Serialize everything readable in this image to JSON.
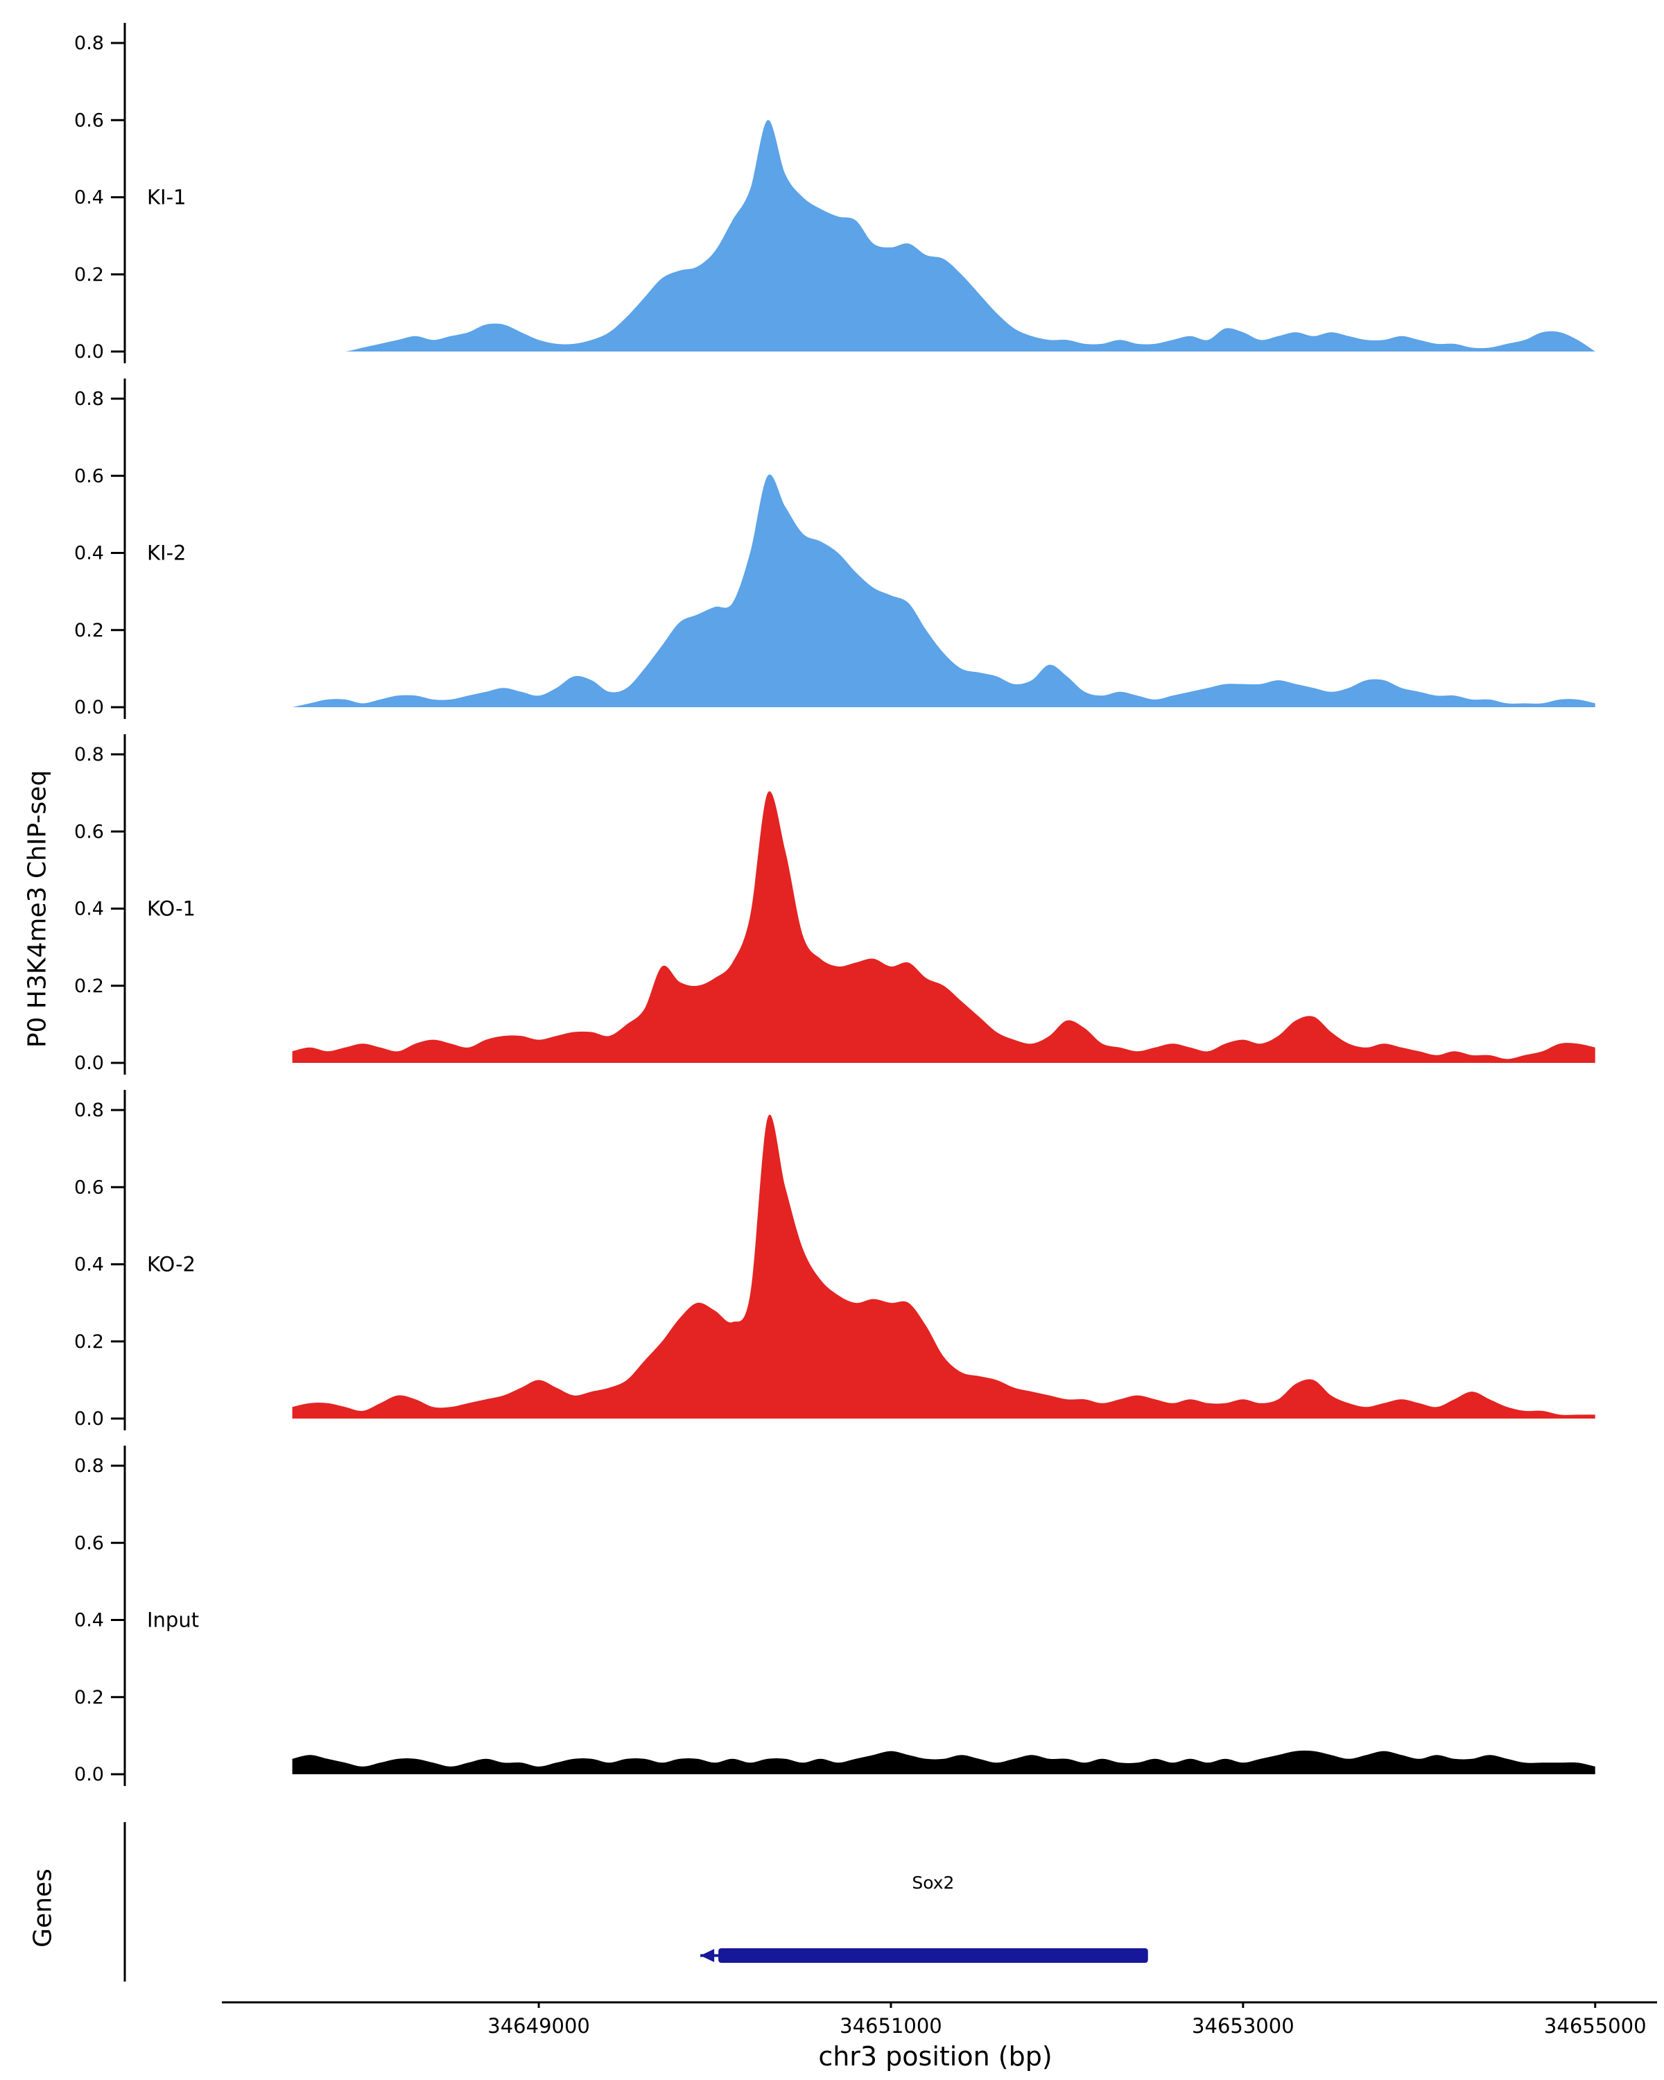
{
  "figure": {
    "y_axis_title": "P0 H3K4me3 ChIP-seq",
    "genes_panel_label": "Genes",
    "x_axis_label": "chr3 position (bp)"
  },
  "chart_data": {
    "type": "area",
    "title": "",
    "ylabel": "P0 H3K4me3 ChIP-seq",
    "xlabel": "chr3 position (bp)",
    "x_range": [
      34647200,
      34655320
    ],
    "y_range": [
      0,
      0.8
    ],
    "y_ticks": [
      "0.0",
      "0.2",
      "0.4",
      "0.6",
      "0.8"
    ],
    "x_ticks": [
      34649000,
      34651000,
      34653000,
      34655000
    ],
    "x_tick_labels": [
      "34649000",
      "34651000",
      "34653000",
      "34655000"
    ],
    "grid": "off",
    "legend": "none",
    "x_start": 34647600,
    "x_step": 100,
    "tracks": [
      {
        "name": "KI-1",
        "color": "#5CA3E8",
        "values": [
          0,
          0,
          0,
          0,
          0.01,
          0.02,
          0.03,
          0.04,
          0.03,
          0.04,
          0.05,
          0.07,
          0.07,
          0.05,
          0.03,
          0.02,
          0.02,
          0.03,
          0.05,
          0.09,
          0.14,
          0.19,
          0.21,
          0.22,
          0.26,
          0.34,
          0.42,
          0.6,
          0.46,
          0.4,
          0.37,
          0.35,
          0.34,
          0.28,
          0.27,
          0.28,
          0.25,
          0.24,
          0.2,
          0.15,
          0.1,
          0.06,
          0.04,
          0.03,
          0.03,
          0.02,
          0.02,
          0.03,
          0.02,
          0.02,
          0.03,
          0.04,
          0.03,
          0.06,
          0.05,
          0.03,
          0.04,
          0.05,
          0.04,
          0.05,
          0.04,
          0.03,
          0.03,
          0.04,
          0.03,
          0.02,
          0.02,
          0.01,
          0.01,
          0.02,
          0.03,
          0.05,
          0.05,
          0.03,
          0
        ]
      },
      {
        "name": "KI-2",
        "color": "#5CA3E8",
        "values": [
          0,
          0.01,
          0.02,
          0.02,
          0.01,
          0.02,
          0.03,
          0.03,
          0.02,
          0.02,
          0.03,
          0.04,
          0.05,
          0.04,
          0.03,
          0.05,
          0.08,
          0.07,
          0.04,
          0.05,
          0.1,
          0.16,
          0.22,
          0.24,
          0.26,
          0.27,
          0.4,
          0.6,
          0.52,
          0.45,
          0.43,
          0.4,
          0.35,
          0.31,
          0.29,
          0.27,
          0.2,
          0.14,
          0.1,
          0.09,
          0.08,
          0.06,
          0.07,
          0.11,
          0.08,
          0.04,
          0.03,
          0.04,
          0.03,
          0.02,
          0.03,
          0.04,
          0.05,
          0.06,
          0.06,
          0.06,
          0.07,
          0.06,
          0.05,
          0.04,
          0.05,
          0.07,
          0.07,
          0.05,
          0.04,
          0.03,
          0.03,
          0.02,
          0.02,
          0.01,
          0.01,
          0.01,
          0.02,
          0.02,
          0.01
        ]
      },
      {
        "name": "KO-1",
        "color": "#E32422",
        "values": [
          0.03,
          0.04,
          0.03,
          0.04,
          0.05,
          0.04,
          0.03,
          0.05,
          0.06,
          0.05,
          0.04,
          0.06,
          0.07,
          0.07,
          0.06,
          0.07,
          0.08,
          0.08,
          0.07,
          0.1,
          0.14,
          0.25,
          0.21,
          0.2,
          0.22,
          0.26,
          0.38,
          0.7,
          0.55,
          0.33,
          0.27,
          0.25,
          0.26,
          0.27,
          0.25,
          0.26,
          0.22,
          0.2,
          0.16,
          0.12,
          0.08,
          0.06,
          0.05,
          0.07,
          0.11,
          0.09,
          0.05,
          0.04,
          0.03,
          0.04,
          0.05,
          0.04,
          0.03,
          0.05,
          0.06,
          0.05,
          0.07,
          0.11,
          0.12,
          0.08,
          0.05,
          0.04,
          0.05,
          0.04,
          0.03,
          0.02,
          0.03,
          0.02,
          0.02,
          0.01,
          0.02,
          0.03,
          0.05,
          0.05,
          0.04
        ]
      },
      {
        "name": "KO-2",
        "color": "#E32422",
        "values": [
          0.03,
          0.04,
          0.04,
          0.03,
          0.02,
          0.04,
          0.06,
          0.05,
          0.03,
          0.03,
          0.04,
          0.05,
          0.06,
          0.08,
          0.1,
          0.08,
          0.06,
          0.07,
          0.08,
          0.1,
          0.15,
          0.2,
          0.26,
          0.3,
          0.28,
          0.25,
          0.32,
          0.78,
          0.6,
          0.44,
          0.36,
          0.32,
          0.3,
          0.31,
          0.3,
          0.3,
          0.24,
          0.16,
          0.12,
          0.11,
          0.1,
          0.08,
          0.07,
          0.06,
          0.05,
          0.05,
          0.04,
          0.05,
          0.06,
          0.05,
          0.04,
          0.05,
          0.04,
          0.04,
          0.05,
          0.04,
          0.05,
          0.09,
          0.1,
          0.06,
          0.04,
          0.03,
          0.04,
          0.05,
          0.04,
          0.03,
          0.05,
          0.07,
          0.05,
          0.03,
          0.02,
          0.02,
          0.01,
          0.01,
          0.01
        ]
      },
      {
        "name": "Input",
        "color": "#000000",
        "values": [
          0.04,
          0.05,
          0.04,
          0.03,
          0.02,
          0.03,
          0.04,
          0.04,
          0.03,
          0.02,
          0.03,
          0.04,
          0.03,
          0.03,
          0.02,
          0.03,
          0.04,
          0.04,
          0.03,
          0.04,
          0.04,
          0.03,
          0.04,
          0.04,
          0.03,
          0.04,
          0.03,
          0.04,
          0.04,
          0.03,
          0.04,
          0.03,
          0.04,
          0.05,
          0.06,
          0.05,
          0.04,
          0.04,
          0.05,
          0.04,
          0.03,
          0.04,
          0.05,
          0.04,
          0.04,
          0.03,
          0.04,
          0.03,
          0.03,
          0.04,
          0.03,
          0.04,
          0.03,
          0.04,
          0.03,
          0.04,
          0.05,
          0.06,
          0.06,
          0.05,
          0.04,
          0.05,
          0.06,
          0.05,
          0.04,
          0.05,
          0.04,
          0.04,
          0.05,
          0.04,
          0.03,
          0.03,
          0.03,
          0.03,
          0.02
        ]
      }
    ],
    "genes": [
      {
        "label": "Sox2",
        "start": 34650020,
        "end": 34652460,
        "strand": "-",
        "color": "#161799"
      }
    ]
  }
}
